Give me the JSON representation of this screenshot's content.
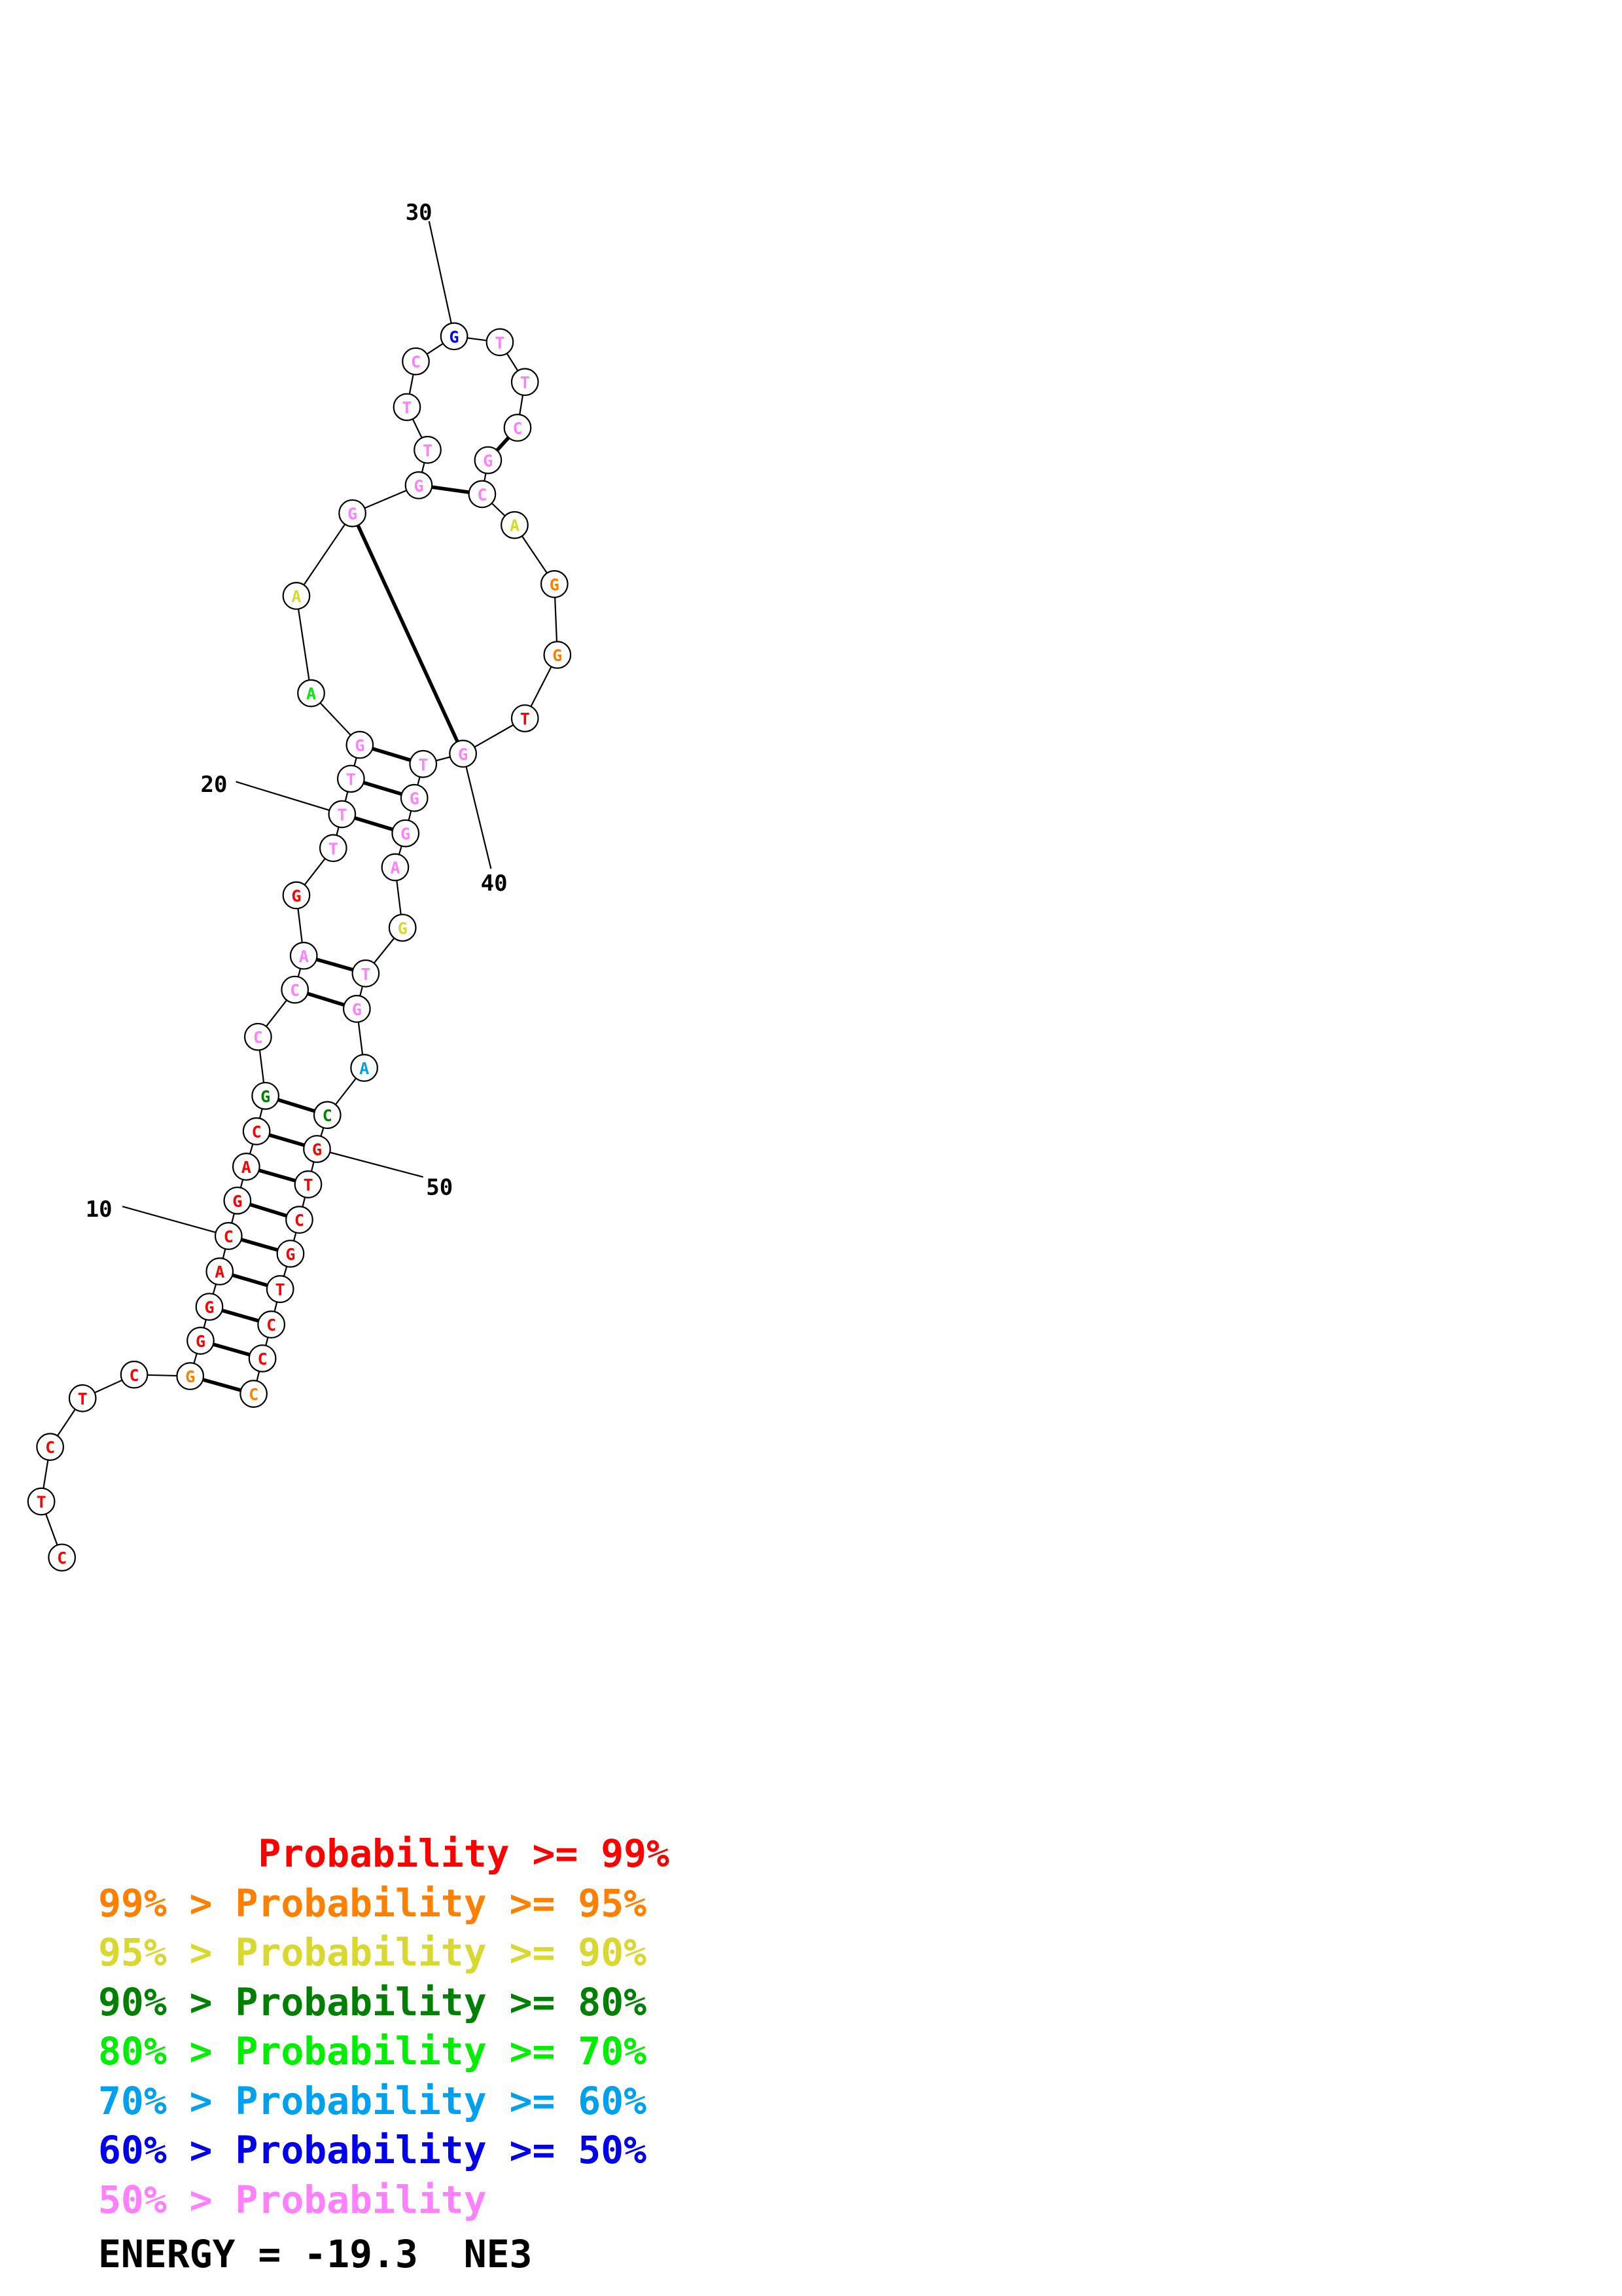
{
  "colors": {
    "p99": "#ff0000",
    "p95": "#ff8000",
    "p90": "#d8d830",
    "p80": "#008000",
    "p70": "#00ee00",
    "p60": "#00a0f0",
    "p50": "#0000ee",
    "plt50": "#ff80ff"
  },
  "sequence": [
    {
      "base": "C",
      "level": "p99"
    },
    {
      "base": "T",
      "level": "p99"
    },
    {
      "base": "C",
      "level": "p99"
    },
    {
      "base": "T",
      "level": "p99"
    },
    {
      "base": "C",
      "level": "p99"
    },
    {
      "base": "G",
      "level": "p95"
    },
    {
      "base": "G",
      "level": "p99"
    },
    {
      "base": "G",
      "level": "p99"
    },
    {
      "base": "A",
      "level": "p99"
    },
    {
      "base": "C",
      "level": "p99"
    },
    {
      "base": "G",
      "level": "p99"
    },
    {
      "base": "A",
      "level": "p99"
    },
    {
      "base": "C",
      "level": "p99"
    },
    {
      "base": "G",
      "level": "p80"
    },
    {
      "base": "C",
      "level": "plt50"
    },
    {
      "base": "C",
      "level": "plt50"
    },
    {
      "base": "A",
      "level": "plt50"
    },
    {
      "base": "G",
      "level": "p99"
    },
    {
      "base": "T",
      "level": "plt50"
    },
    {
      "base": "T",
      "level": "plt50"
    },
    {
      "base": "T",
      "level": "plt50"
    },
    {
      "base": "G",
      "level": "plt50"
    },
    {
      "base": "A",
      "level": "p70"
    },
    {
      "base": "A",
      "level": "p90"
    },
    {
      "base": "G",
      "level": "plt50"
    },
    {
      "base": "G",
      "level": "plt50"
    },
    {
      "base": "T",
      "level": "plt50"
    },
    {
      "base": "T",
      "level": "plt50"
    },
    {
      "base": "C",
      "level": "plt50"
    },
    {
      "base": "G",
      "level": "p50"
    },
    {
      "base": "T",
      "level": "plt50"
    },
    {
      "base": "T",
      "level": "plt50"
    },
    {
      "base": "C",
      "level": "plt50"
    },
    {
      "base": "G",
      "level": "plt50"
    },
    {
      "base": "C",
      "level": "plt50"
    },
    {
      "base": "A",
      "level": "p90"
    },
    {
      "base": "G",
      "level": "p95"
    },
    {
      "base": "G",
      "level": "p95"
    },
    {
      "base": "T",
      "level": "p99"
    },
    {
      "base": "G",
      "level": "plt50"
    },
    {
      "base": "T",
      "level": "plt50"
    },
    {
      "base": "G",
      "level": "plt50"
    },
    {
      "base": "G",
      "level": "plt50"
    },
    {
      "base": "A",
      "level": "plt50"
    },
    {
      "base": "G",
      "level": "p90"
    },
    {
      "base": "T",
      "level": "plt50"
    },
    {
      "base": "G",
      "level": "plt50"
    },
    {
      "base": "A",
      "level": "p60"
    },
    {
      "base": "C",
      "level": "p80"
    },
    {
      "base": "G",
      "level": "p99"
    },
    {
      "base": "T",
      "level": "p99"
    },
    {
      "base": "C",
      "level": "p99"
    },
    {
      "base": "G",
      "level": "p99"
    },
    {
      "base": "T",
      "level": "p99"
    },
    {
      "base": "C",
      "level": "p99"
    },
    {
      "base": "C",
      "level": "p99"
    },
    {
      "base": "C",
      "level": "p95"
    }
  ],
  "pairs": [
    [
      6,
      57
    ],
    [
      7,
      56
    ],
    [
      8,
      55
    ],
    [
      9,
      54
    ],
    [
      10,
      53
    ],
    [
      11,
      52
    ],
    [
      12,
      51
    ],
    [
      13,
      50
    ],
    [
      14,
      49
    ],
    [
      16,
      47
    ],
    [
      17,
      46
    ],
    [
      20,
      43
    ],
    [
      21,
      42
    ],
    [
      22,
      41
    ],
    [
      25,
      40
    ],
    [
      33,
      34
    ],
    [
      26,
      35
    ]
  ],
  "position_labels": [
    {
      "text": "10",
      "index": 10
    },
    {
      "text": "20",
      "index": 20
    },
    {
      "text": "30",
      "index": 30
    },
    {
      "text": "40",
      "index": 40
    },
    {
      "text": "50",
      "index": 50
    }
  ],
  "legend": [
    {
      "text": "       Probability >= 99%",
      "level": "p99"
    },
    {
      "text": "99% > Probability >= 95%",
      "level": "p95"
    },
    {
      "text": "95% > Probability >= 90%",
      "level": "p90"
    },
    {
      "text": "90% > Probability >= 80%",
      "level": "p80"
    },
    {
      "text": "80% > Probability >= 70%",
      "level": "p70"
    },
    {
      "text": "70% > Probability >= 60%",
      "level": "p60"
    },
    {
      "text": "60% > Probability >= 50%",
      "level": "p50"
    },
    {
      "text": "50% > Probability",
      "level": "plt50"
    }
  ],
  "energy": {
    "text": "ENERGY = -19.3  NE3"
  }
}
